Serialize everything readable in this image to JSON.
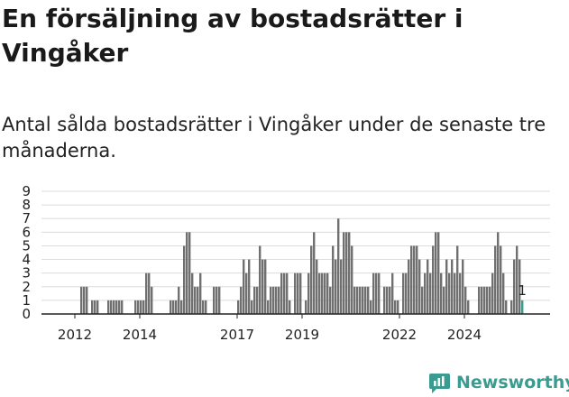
{
  "header": {
    "title": "En försäljning av bostadsrätter i Vingåker",
    "subtitle": "Antal sålda bostadsrätter i Vingåker under de senaste tre månaderna."
  },
  "brand": {
    "name": "Newsworthy",
    "color": "#3a9b91",
    "icon": "newsworthy-chart-icon"
  },
  "colors": {
    "bar": "#707070",
    "highlight": "#3a9b91",
    "grid": "#dcdcdc",
    "axis": "#222222"
  },
  "chart_data": {
    "type": "bar",
    "ylim": [
      0,
      9
    ],
    "yticks": [
      0,
      1,
      2,
      3,
      4,
      5,
      6,
      7,
      8,
      9
    ],
    "grid": true,
    "x_start": "2011-06",
    "xticks": [
      "2012",
      "2014",
      "2017",
      "2019",
      "2022",
      "2024"
    ],
    "highlight_label": "1",
    "values": [
      0,
      0,
      0,
      0,
      0,
      0,
      0,
      0,
      0,
      2,
      2,
      2,
      0,
      1,
      1,
      1,
      0,
      0,
      0,
      1,
      1,
      1,
      1,
      1,
      1,
      0,
      0,
      0,
      0,
      1,
      1,
      1,
      1,
      3,
      3,
      2,
      0,
      0,
      0,
      0,
      0,
      0,
      1,
      1,
      1,
      2,
      1,
      5,
      6,
      6,
      3,
      2,
      2,
      3,
      1,
      1,
      0,
      0,
      2,
      2,
      2,
      0,
      0,
      0,
      0,
      0,
      0,
      1,
      2,
      4,
      3,
      4,
      1,
      2,
      2,
      5,
      4,
      4,
      1,
      2,
      2,
      2,
      2,
      3,
      3,
      3,
      1,
      0,
      3,
      3,
      3,
      0,
      1,
      3,
      5,
      6,
      4,
      3,
      3,
      3,
      3,
      2,
      5,
      4,
      7,
      4,
      6,
      6,
      6,
      5,
      2,
      2,
      2,
      2,
      2,
      2,
      1,
      3,
      3,
      3,
      0,
      2,
      2,
      2,
      3,
      1,
      1,
      0,
      3,
      3,
      4,
      5,
      5,
      5,
      4,
      2,
      3,
      4,
      3,
      5,
      6,
      6,
      3,
      2,
      4,
      3,
      4,
      3,
      5,
      3,
      4,
      2,
      1,
      0,
      0,
      0,
      2,
      2,
      2,
      2,
      2,
      3,
      5,
      6,
      5,
      3,
      1,
      0,
      1,
      4,
      5,
      4,
      1
    ]
  }
}
